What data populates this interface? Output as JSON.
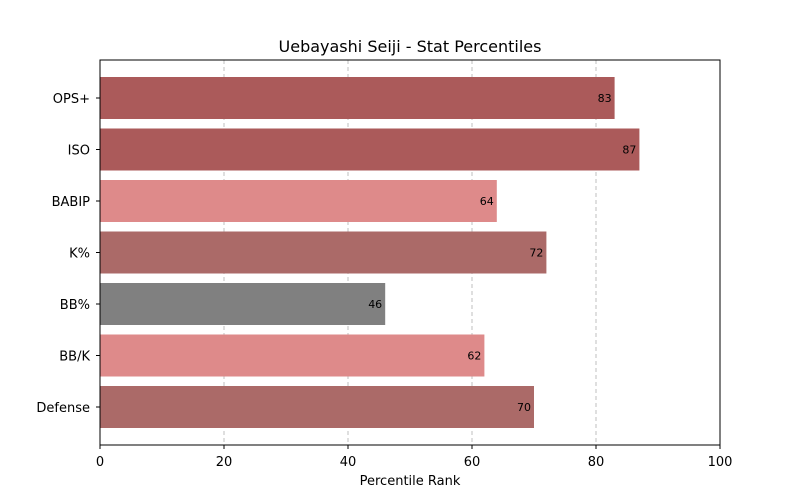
{
  "chart_data": {
    "type": "bar",
    "orientation": "horizontal",
    "title": "Uebayashi Seiji - Stat Percentiles",
    "xlabel": "Percentile Rank",
    "ylabel": "",
    "xlim": [
      0,
      100
    ],
    "xticks": [
      0,
      20,
      40,
      60,
      80,
      100
    ],
    "grid": "vertical dashed",
    "categories": [
      "OPS+",
      "ISO",
      "BABIP",
      "K%",
      "BB%",
      "BB/K",
      "Defense"
    ],
    "values": [
      83,
      87,
      64,
      72,
      46,
      62,
      70
    ],
    "bar_colors": [
      "#ab5a5a",
      "#ab5a5a",
      "#de8a8a",
      "#ab6a68",
      "#808080",
      "#de8a8a",
      "#ab6a68"
    ]
  }
}
